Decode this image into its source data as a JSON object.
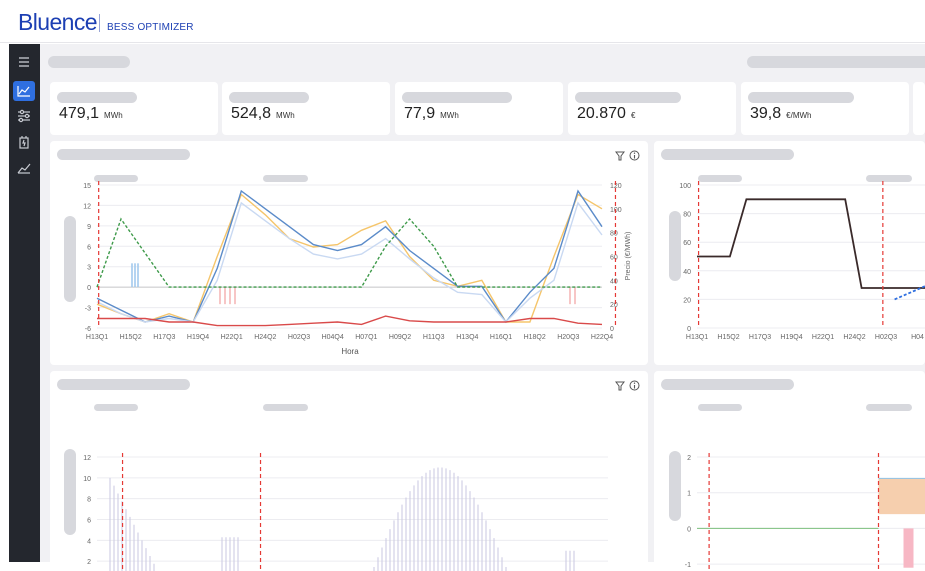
{
  "header": {
    "brand": "Bluence",
    "product": "BESS OPTIMIZER"
  },
  "sidebar": {
    "items": [
      {
        "icon": "menu-icon",
        "active": false
      },
      {
        "icon": "area-chart-icon",
        "active": true
      },
      {
        "icon": "sliders-icon",
        "active": false
      },
      {
        "icon": "battery-icon",
        "active": false
      },
      {
        "icon": "line-chart-icon",
        "active": false
      }
    ]
  },
  "kpis": [
    {
      "value": "479,1",
      "unit": "MWh"
    },
    {
      "value": "524,8",
      "unit": "MWh"
    },
    {
      "value": "77,9",
      "unit": "MWh"
    },
    {
      "value": "20.870",
      "unit": "€"
    },
    {
      "value": "39,8",
      "unit": "€/MWh"
    }
  ],
  "colors": {
    "accent": "#2f6fe0",
    "brand": "#1c3fb3",
    "sidebar": "#24272e",
    "marker": "#e53935"
  },
  "chart_data": [
    {
      "type": "line",
      "x_ticks": [
        "H13Q1",
        "H15Q2",
        "H17Q3",
        "H19Q4",
        "H22Q1",
        "H24Q2",
        "H02Q3",
        "H04Q4",
        "H07Q1",
        "H09Q2",
        "H11Q3",
        "H13Q4",
        "H16Q1",
        "H18Q2",
        "H20Q3",
        "H22Q4"
      ],
      "xlabel": "Hora",
      "y_ticks_left": [
        "15",
        "12",
        "9",
        "6",
        "3",
        "0",
        "-3",
        "-6"
      ],
      "ylim_left": [
        -6,
        15
      ],
      "y_ticks_right": [
        "120",
        "100",
        "80",
        "60",
        "40",
        "20",
        "0"
      ],
      "ylim_right": [
        0,
        120
      ],
      "ylabel_right": "Precio (€/MWh)",
      "marker_x": [
        0.05,
        15.4
      ],
      "series": [
        {
          "color": "#f5c56b",
          "axis": "right",
          "values": [
            20,
            12,
            5,
            12,
            5,
            60,
            112,
            95,
            75,
            68,
            70,
            82,
            90,
            60,
            40,
            35,
            40,
            5,
            5,
            60,
            112,
            100
          ]
        },
        {
          "color": "#5b8bc9",
          "axis": "right",
          "values": [
            25,
            15,
            5,
            10,
            5,
            50,
            115,
            100,
            85,
            70,
            65,
            70,
            85,
            65,
            50,
            35,
            35,
            5,
            30,
            50,
            115,
            85
          ]
        },
        {
          "color": "#c9d9f2",
          "axis": "right",
          "values": [
            22,
            12,
            5,
            8,
            5,
            40,
            105,
            90,
            75,
            62,
            58,
            62,
            75,
            58,
            42,
            30,
            28,
            5,
            25,
            40,
            105,
            78
          ]
        },
        {
          "color": "#3e9a4a",
          "axis": "left",
          "dashed": true,
          "values": [
            0,
            10,
            5,
            0,
            0,
            0,
            0,
            0,
            0,
            0,
            0,
            0,
            6,
            10,
            6,
            0,
            0,
            0,
            0,
            0,
            0,
            0
          ]
        },
        {
          "color": "#d94a4a",
          "axis": "right",
          "values": [
            8,
            8,
            8,
            5,
            5,
            2,
            2,
            2,
            3,
            4,
            5,
            3,
            10,
            6,
            5,
            5,
            5,
            5,
            8,
            8,
            4,
            3
          ]
        }
      ]
    },
    {
      "type": "line",
      "x_ticks": [
        "H13Q1",
        "H15Q2",
        "H17Q3",
        "H19Q4",
        "H22Q1",
        "H24Q2",
        "H02Q3",
        "H04"
      ],
      "y_ticks": [
        "100",
        "80",
        "60",
        "40",
        "20",
        "0"
      ],
      "ylim": [
        0,
        100
      ],
      "marker_x": [
        0.05,
        5.9
      ],
      "series": [
        {
          "color": "#3a2a2a",
          "values": [
            50,
            50,
            50,
            90,
            90,
            90,
            90,
            90,
            90,
            90,
            28,
            28,
            28,
            28,
            28,
            42
          ]
        },
        {
          "color": "#2f6fe0",
          "dashed": true,
          "values": [
            null,
            null,
            null,
            null,
            null,
            null,
            null,
            null,
            null,
            null,
            null,
            null,
            20,
            25,
            30,
            32
          ]
        }
      ]
    },
    {
      "type": "bar",
      "y_ticks": [
        "12",
        "10",
        "8",
        "6",
        "4",
        "2",
        "0"
      ],
      "ylim": [
        0,
        12
      ],
      "marker_x": [
        0.05,
        0.32
      ]
    },
    {
      "type": "area",
      "y_ticks": [
        "2",
        "1",
        "0",
        "-1"
      ],
      "ylim": [
        -1.5,
        2
      ],
      "marker_x": [
        0.05,
        0.75
      ]
    }
  ]
}
